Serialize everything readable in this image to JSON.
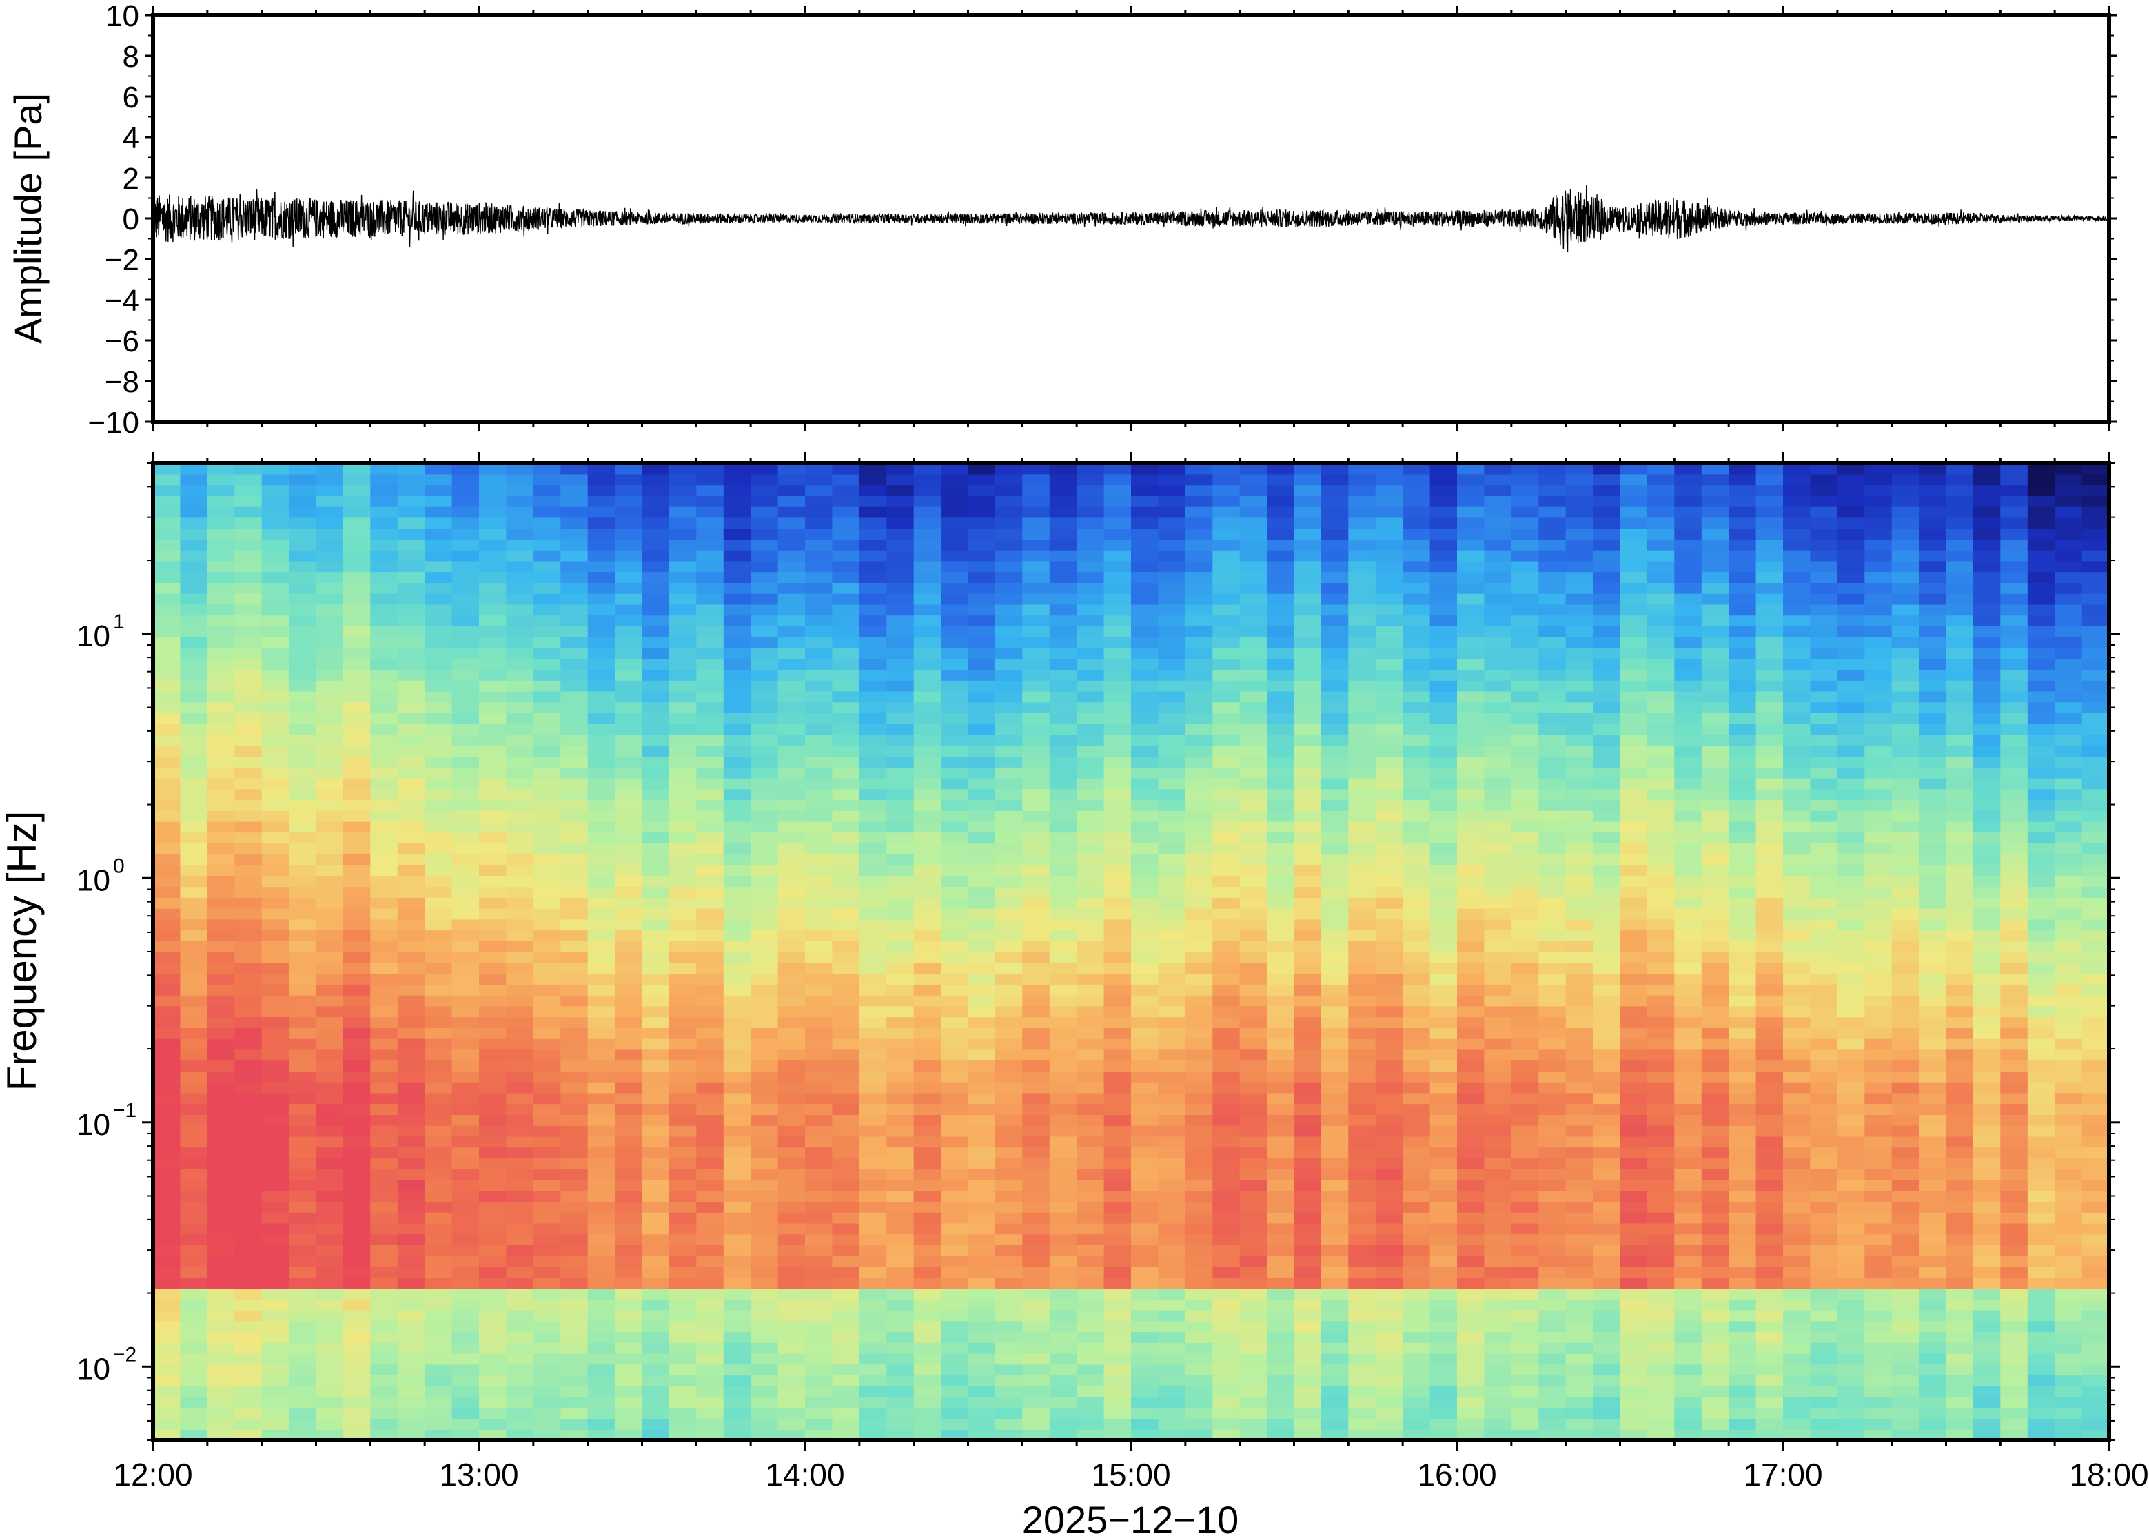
{
  "chart_data": [
    {
      "type": "line",
      "title": "",
      "xlabel": "",
      "ylabel": "Amplitude [Pa]",
      "x_range": [
        "12:00",
        "18:00"
      ],
      "ylim": [
        -10,
        10
      ],
      "y_ticks": [
        -10,
        -8,
        -6,
        -4,
        -2,
        0,
        2,
        4,
        6,
        8,
        10
      ],
      "y_tick_labels": [
        "−10",
        "−8",
        "−6",
        "−4",
        "−2",
        "0",
        "2",
        "4",
        "6",
        "8",
        "10"
      ],
      "series": [
        {
          "description_free": true,
          "envelope_times": [
            "12:00",
            "12:15",
            "12:30",
            "12:45",
            "13:00",
            "13:15",
            "13:30",
            "14:00",
            "14:30",
            "15:00",
            "15:15",
            "15:30",
            "15:45",
            "16:00",
            "16:15",
            "16:20",
            "16:30",
            "16:40",
            "16:50",
            "17:00",
            "17:15",
            "17:30",
            "17:45",
            "18:00"
          ],
          "envelope_pa": [
            1.2,
            1.1,
            1.0,
            0.9,
            0.8,
            0.5,
            0.3,
            0.2,
            0.25,
            0.3,
            0.4,
            0.45,
            0.35,
            0.4,
            0.45,
            1.6,
            0.5,
            1.1,
            0.4,
            0.3,
            0.25,
            0.3,
            0.15,
            0.1
          ],
          "color": "#000000"
        }
      ]
    },
    {
      "type": "heatmap",
      "title": "",
      "xlabel": "2025−12−10",
      "ylabel": "Frequency [Hz]",
      "y_scale": "log",
      "ylim": [
        0.005,
        50
      ],
      "y_ticks": [
        0.01,
        0.1,
        1,
        10
      ],
      "y_tick_labels": [
        {
          "base": "10",
          "exp": "−2"
        },
        {
          "base": "10",
          "exp": "−1"
        },
        {
          "base": "10",
          "exp": "0"
        },
        {
          "base": "10",
          "exp": "1"
        }
      ],
      "x_tick_labels": [
        "12:00",
        "13:00",
        "14:00",
        "15:00",
        "16:00",
        "17:00",
        "18:00"
      ],
      "colormap": [
        "#10105a",
        "#1a2fbf",
        "#2a6fe8",
        "#38b6f0",
        "#6fe0c8",
        "#b8f0a0",
        "#f0e880",
        "#f8b060",
        "#f07850",
        "#e84858"
      ],
      "time_profile_hours": [
        12.0,
        12.5,
        13.0,
        13.5,
        14.0,
        14.5,
        15.0,
        15.5,
        16.0,
        16.5,
        17.0,
        17.5,
        18.0
      ],
      "time_profile_level": [
        1.0,
        1.0,
        0.9,
        0.55,
        0.35,
        0.45,
        0.5,
        0.6,
        0.55,
        0.6,
        0.5,
        0.4,
        0.2
      ]
    }
  ]
}
